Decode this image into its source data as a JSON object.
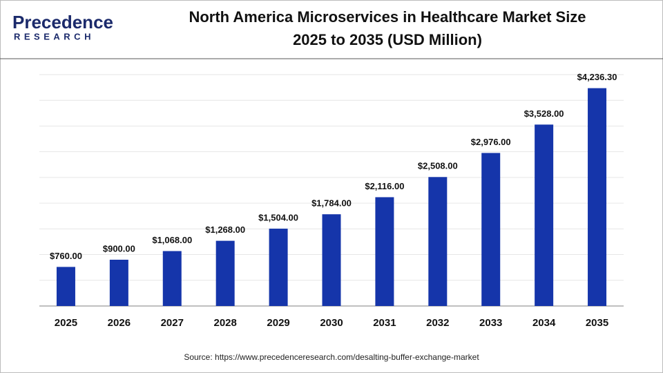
{
  "logo": {
    "name": "Precedence",
    "tagline": "RESEARCH"
  },
  "chart_data": {
    "type": "bar",
    "title": [
      "North America Microservices in Healthcare Market Size",
      "2025 to 2035 (USD Million)"
    ],
    "categories": [
      "2025",
      "2026",
      "2027",
      "2028",
      "2029",
      "2030",
      "2031",
      "2032",
      "2033",
      "2034",
      "2035"
    ],
    "values": [
      760,
      900,
      1068,
      1268,
      1504,
      1784,
      2116,
      2508,
      2976,
      3528,
      4236.3
    ],
    "value_labels": [
      "$760.00",
      "$900.00",
      "$1,068.00",
      "$1,268.00",
      "$1,504.00",
      "$1,784.00",
      "$2,116.00",
      "$2,508.00",
      "$2,976.00",
      "$3,528.00",
      "$4,236.30"
    ],
    "color": "#1535aa",
    "ylim": [
      0,
      4500
    ],
    "yticks": [
      0,
      500,
      1000,
      1500,
      2000,
      2500,
      3000,
      3500,
      4000,
      4500
    ],
    "grid": true,
    "source": "Source: https://www.precedenceresearch.com/desalting-buffer-exchange-market"
  }
}
